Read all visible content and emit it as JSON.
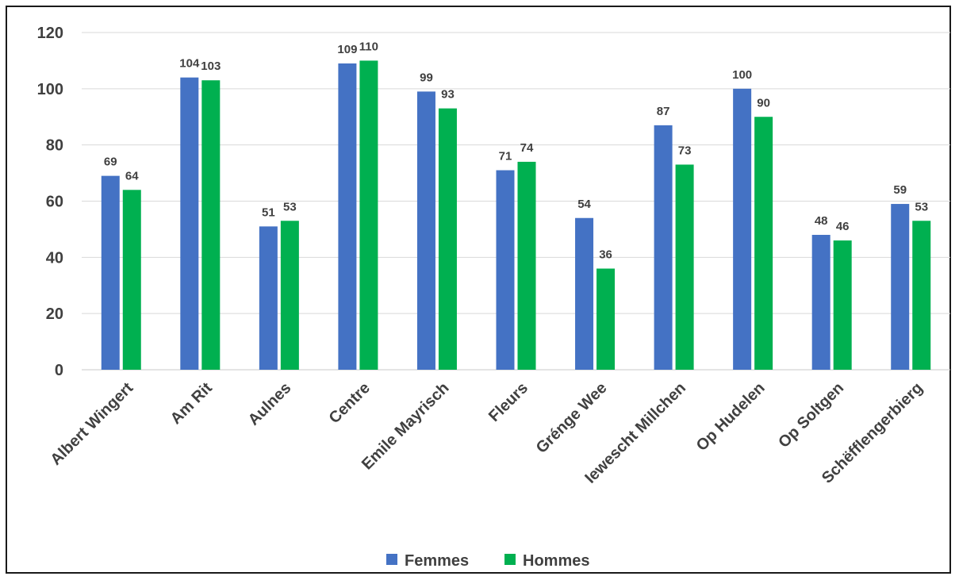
{
  "chart_data": {
    "type": "bar",
    "title": "",
    "xlabel": "",
    "ylabel": "",
    "ylim": [
      0,
      120
    ],
    "yticks": [
      0,
      20,
      40,
      60,
      80,
      100,
      120
    ],
    "grid": true,
    "legend_position": "bottom",
    "categories": [
      "Albert Wingert",
      "Am Rit",
      "Aulnes",
      "Centre",
      "Emile Mayrisch",
      "Fleurs",
      "Grénge Wee",
      "Iewescht Millchen",
      "Op Hudelen",
      "Op Soltgen",
      "Schëfflengerbierg"
    ],
    "series": [
      {
        "name": "Femmes",
        "color": "#4472C4",
        "values": [
          69,
          104,
          51,
          109,
          99,
          71,
          54,
          87,
          100,
          48,
          59
        ]
      },
      {
        "name": "Hommes",
        "color": "#00B050",
        "values": [
          64,
          103,
          53,
          110,
          93,
          74,
          36,
          73,
          90,
          46,
          53
        ]
      }
    ]
  }
}
